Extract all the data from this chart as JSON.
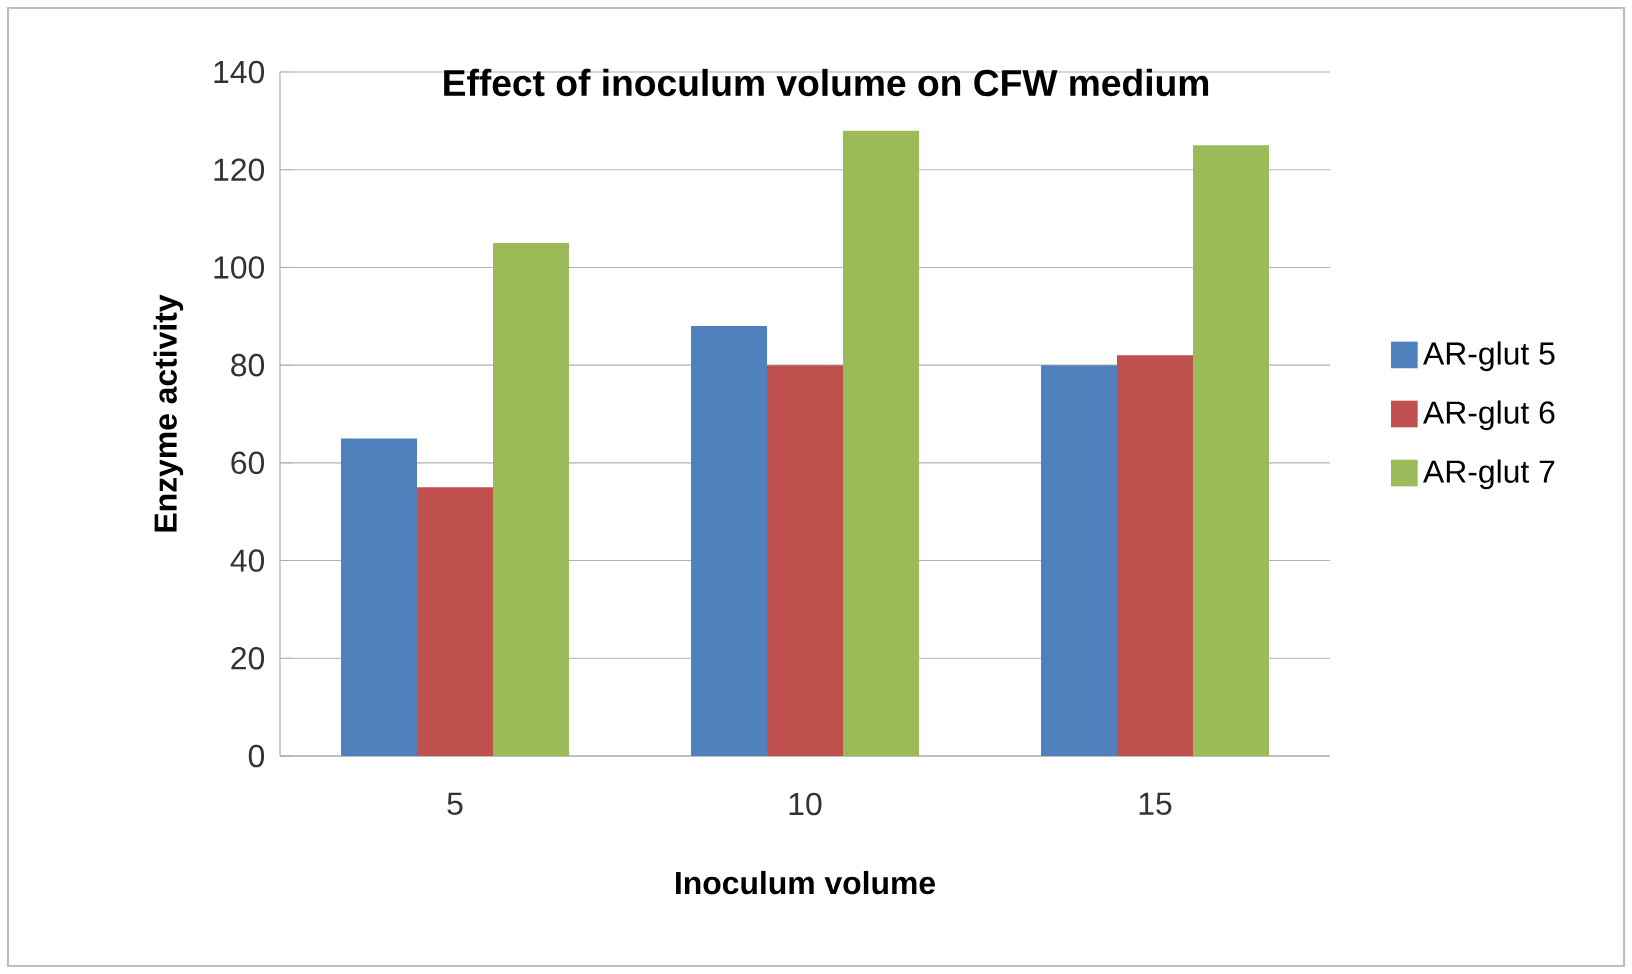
{
  "chart_data": {
    "type": "bar",
    "title": "Effect of  inoculum volume on CFW medium",
    "xlabel": "Inoculum volume",
    "ylabel": "Enzyme activity",
    "categories": [
      "5",
      "10",
      "15"
    ],
    "series": [
      {
        "name": "AR-glut 5",
        "color": "#4f81bd",
        "values": [
          65,
          88,
          80
        ]
      },
      {
        "name": "AR-glut 6",
        "color": "#c0504d",
        "values": [
          55,
          80,
          82
        ]
      },
      {
        "name": "AR-glut 7",
        "color": "#9bbb59",
        "values": [
          105,
          128,
          125
        ]
      }
    ],
    "ylim": [
      0,
      140
    ],
    "yticks": [
      0,
      20,
      40,
      60,
      80,
      100,
      120,
      140
    ],
    "grid": "y",
    "legend": "right"
  }
}
